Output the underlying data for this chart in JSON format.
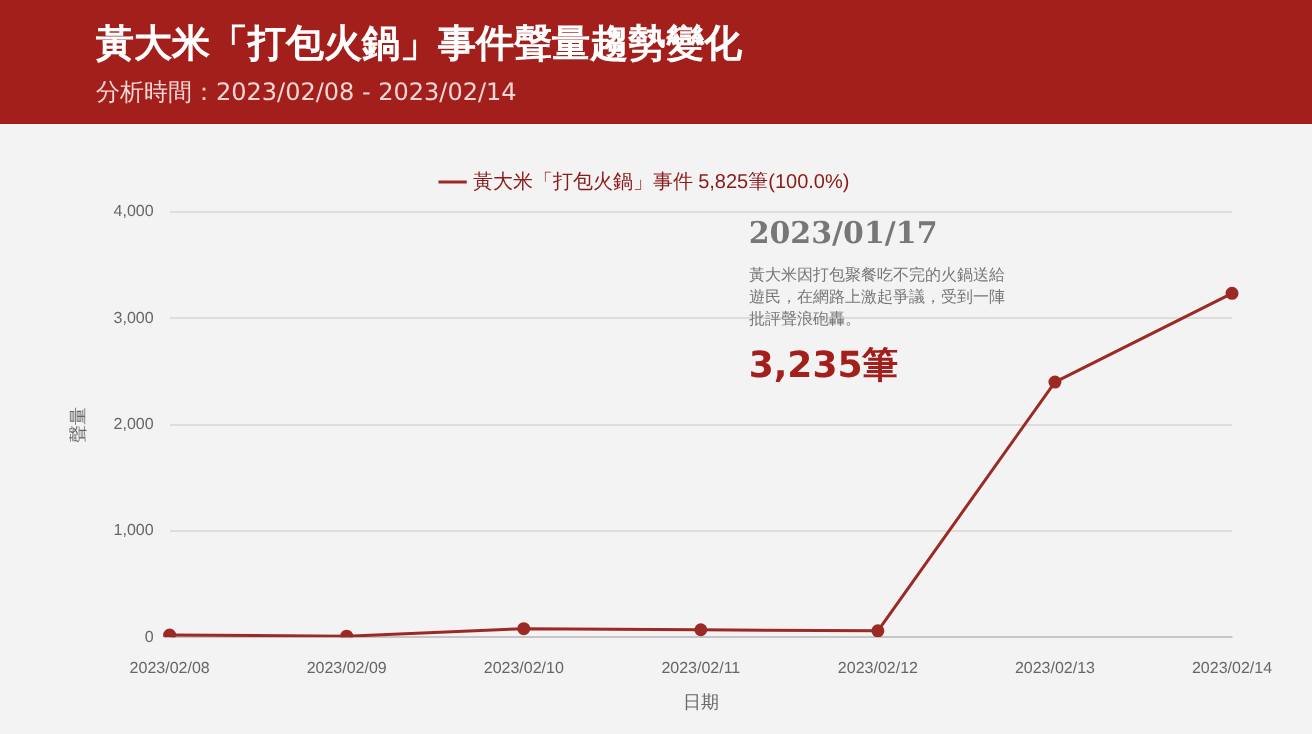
{
  "chart_data": {
    "type": "line",
    "title": "黃大米「打包火鍋」事件聲量趨勢變化",
    "subtitle": "分析時間：2023/02/08 - 2023/02/14",
    "xlabel": "日期",
    "ylabel": "聲量",
    "categories": [
      "2023/02/08",
      "2023/02/09",
      "2023/02/10",
      "2023/02/11",
      "2023/02/12",
      "2023/02/13",
      "2023/02/14"
    ],
    "series": [
      {
        "name": "黃大米「打包火鍋」事件 5,825筆(100.0%)",
        "color": "#9b2a24",
        "values": [
          20,
          10,
          80,
          70,
          60,
          2400,
          3235
        ]
      }
    ],
    "ylim": [
      0,
      4000
    ],
    "yticks": [
      {
        "value": 0,
        "label": "0"
      },
      {
        "value": 1000,
        "label": "1,000"
      },
      {
        "value": 2000,
        "label": "2,000"
      },
      {
        "value": 3000,
        "label": "3,000"
      },
      {
        "value": 4000,
        "label": "4,000"
      }
    ],
    "grid": "y",
    "legend": "top",
    "marker": "circle",
    "line_style": "solid",
    "annotations": [
      "2023/01/17",
      "黃大米因打包聚餐吃不完的火鍋送給遊民，在網路上激起爭議，受到一陣批評聲浪砲轟。",
      "3,235筆"
    ]
  }
}
